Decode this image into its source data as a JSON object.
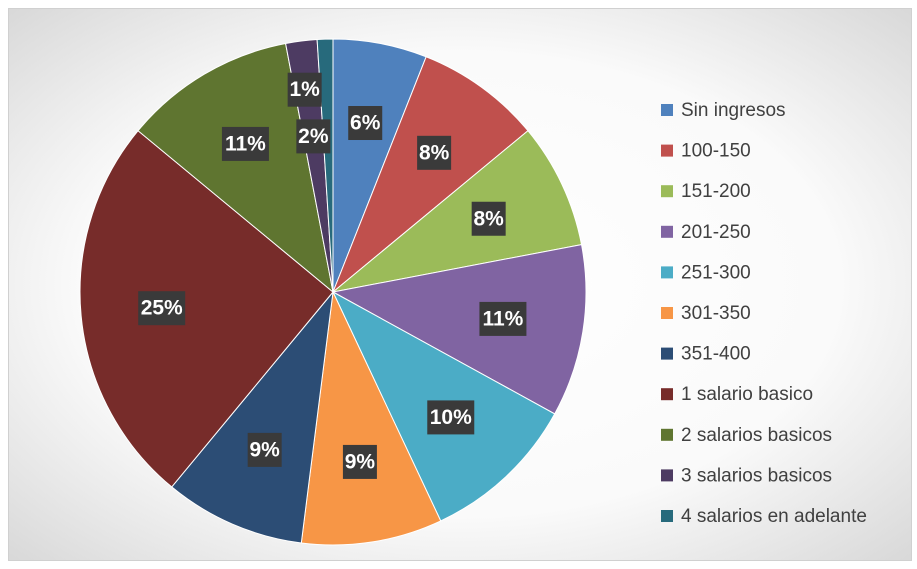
{
  "chart_data": {
    "type": "pie",
    "categories": [
      "Sin ingresos",
      "100-150",
      "151-200",
      "201-250",
      "251-300",
      "301-350",
      "351-400",
      "1 salario basico",
      "2 salarios basicos",
      "3 salarios basicos",
      "4 salarios en adelante"
    ],
    "values": [
      6,
      8,
      8,
      11,
      10,
      9,
      9,
      25,
      11,
      2,
      1
    ],
    "value_labels": [
      "6%",
      "8%",
      "8%",
      "11%",
      "10%",
      "9%",
      "9%",
      "25%",
      "11%",
      "2%",
      "1%"
    ],
    "colors": [
      "#4f81bd",
      "#c0504d",
      "#9bbb59",
      "#8064a2",
      "#4bacc6",
      "#f79646",
      "#2c4d75",
      "#772c2a",
      "#5f7530",
      "#4d3b62",
      "#276a7c"
    ],
    "legend": "right"
  }
}
